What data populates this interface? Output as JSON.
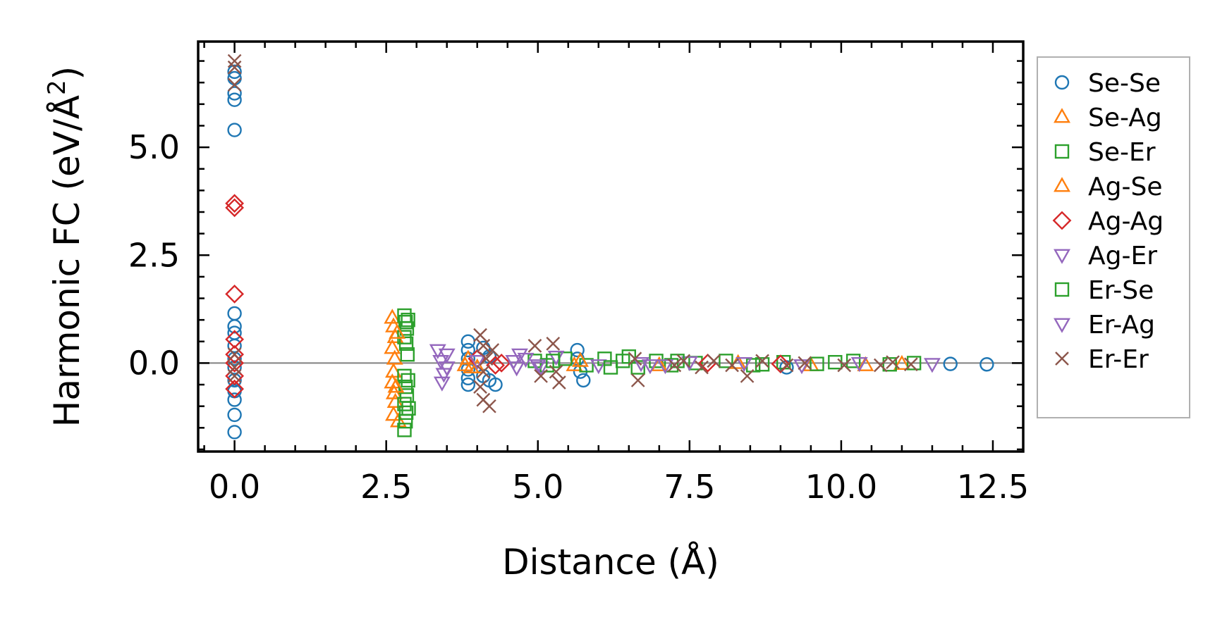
{
  "chart_data": {
    "type": "scatter",
    "xlabel": "Distance (Å)",
    "ylabel_main": "Harmonic FC (eV/Å",
    "ylabel_sup": "2",
    "ylabel_close": ")",
    "xlim": [
      -0.6,
      13.0
    ],
    "ylim": [
      -2.05,
      7.45
    ],
    "x_ticks": [
      0.0,
      2.5,
      5.0,
      7.5,
      10.0,
      12.5
    ],
    "x_tick_labels": [
      "0.0",
      "2.5",
      "5.0",
      "7.5",
      "10.0",
      "12.5"
    ],
    "y_ticks": [
      0.0,
      2.5,
      5.0
    ],
    "y_tick_labels": [
      "0.0",
      "2.5",
      "5.0"
    ],
    "zero_line": 0.0,
    "legend_position": "outside-right",
    "series": [
      {
        "name": "Se-Se",
        "marker": "circle",
        "color": "#1f77b4",
        "points": [
          [
            0,
            6.75
          ],
          [
            0,
            6.6
          ],
          [
            0,
            6.25
          ],
          [
            0,
            6.1
          ],
          [
            0,
            5.4
          ],
          [
            0,
            1.15
          ],
          [
            0,
            0.85
          ],
          [
            0,
            0.7
          ],
          [
            0,
            0.4
          ],
          [
            0,
            0.1
          ],
          [
            0,
            -0.1
          ],
          [
            0,
            -0.4
          ],
          [
            0,
            -0.65
          ],
          [
            0,
            -0.85
          ],
          [
            0,
            -1.2
          ],
          [
            0,
            -1.6
          ],
          [
            3.85,
            0.5
          ],
          [
            3.85,
            0.3
          ],
          [
            3.85,
            0.1
          ],
          [
            3.85,
            -0.15
          ],
          [
            3.85,
            -0.35
          ],
          [
            3.85,
            -0.5
          ],
          [
            4.1,
            0.35
          ],
          [
            4.1,
            -0.3
          ],
          [
            4.2,
            0.15
          ],
          [
            4.2,
            -0.4
          ],
          [
            4.3,
            -0.5
          ],
          [
            5.65,
            0.3
          ],
          [
            5.65,
            0.1
          ],
          [
            5.7,
            -0.2
          ],
          [
            5.75,
            -0.4
          ],
          [
            9.1,
            -0.1
          ],
          [
            11.8,
            -0.02
          ],
          [
            12.4,
            -0.03
          ]
        ]
      },
      {
        "name": "Se-Ag",
        "marker": "triangle-up",
        "color": "#ff7f0e",
        "points": [
          [
            2.6,
            1.05
          ],
          [
            2.62,
            0.85
          ],
          [
            2.65,
            0.6
          ],
          [
            2.6,
            0.35
          ],
          [
            2.64,
            0.1
          ],
          [
            2.62,
            -0.2
          ],
          [
            2.6,
            -0.45
          ],
          [
            2.63,
            -0.7
          ],
          [
            2.65,
            -0.9
          ],
          [
            2.62,
            -1.2
          ],
          [
            2.7,
            -1.35
          ],
          [
            3.8,
            -0.05
          ],
          [
            3.9,
            -0.1
          ],
          [
            5.6,
            -0.05
          ],
          [
            9.5,
            -0.05
          ],
          [
            11.0,
            -0.02
          ]
        ]
      },
      {
        "name": "Se-Er",
        "marker": "square",
        "color": "#2ca02c",
        "points": [
          [
            2.8,
            1.1
          ],
          [
            2.82,
            0.95
          ],
          [
            2.84,
            0.8
          ],
          [
            2.8,
            0.6
          ],
          [
            2.83,
            0.45
          ],
          [
            2.8,
            -0.3
          ],
          [
            2.82,
            -0.55
          ],
          [
            2.84,
            -0.75
          ],
          [
            2.8,
            -0.95
          ],
          [
            2.83,
            -1.15
          ],
          [
            2.82,
            -1.35
          ],
          [
            2.8,
            -1.55
          ],
          [
            4.95,
            0.05
          ],
          [
            5.15,
            -0.05
          ],
          [
            5.45,
            0.1
          ],
          [
            5.8,
            -0.05
          ],
          [
            6.1,
            0.1
          ],
          [
            6.4,
            0.05
          ],
          [
            6.65,
            -0.1
          ],
          [
            6.95,
            0.05
          ],
          [
            7.2,
            -0.05
          ],
          [
            7.6,
            0.0
          ],
          [
            8.1,
            0.05
          ],
          [
            8.55,
            -0.05
          ],
          [
            9.05,
            0.02
          ],
          [
            9.6,
            -0.02
          ],
          [
            10.2,
            0.05
          ],
          [
            10.8,
            -0.03
          ],
          [
            11.2,
            0.0
          ]
        ]
      },
      {
        "name": "Ag-Se",
        "marker": "triangle-up",
        "color": "#ff7f0e",
        "points": [
          [
            2.68,
            0.7
          ],
          [
            2.66,
            -0.55
          ],
          [
            3.85,
            0.1
          ],
          [
            4.0,
            -0.1
          ],
          [
            5.7,
            0.05
          ],
          [
            7.0,
            -0.05
          ],
          [
            8.3,
            0.0
          ],
          [
            10.4,
            -0.05
          ]
        ]
      },
      {
        "name": "Ag-Ag",
        "marker": "diamond",
        "color": "#d62728",
        "points": [
          [
            0,
            3.7
          ],
          [
            0,
            3.6
          ],
          [
            0,
            1.6
          ],
          [
            0,
            0.55
          ],
          [
            0,
            0.2
          ],
          [
            0,
            0.0
          ],
          [
            0,
            -0.3
          ],
          [
            0,
            -0.6
          ],
          [
            4.0,
            0.1
          ],
          [
            4.3,
            -0.05
          ],
          [
            4.4,
            0.0
          ],
          [
            7.8,
            0.0
          ],
          [
            9.0,
            -0.02
          ]
        ]
      },
      {
        "name": "Ag-Er",
        "marker": "triangle-down",
        "color": "#9467bd",
        "points": [
          [
            3.35,
            0.3
          ],
          [
            3.4,
            0.05
          ],
          [
            3.45,
            -0.25
          ],
          [
            3.42,
            -0.45
          ],
          [
            4.0,
            0.05
          ],
          [
            4.7,
            0.2
          ],
          [
            4.65,
            -0.1
          ],
          [
            4.8,
            0.1
          ],
          [
            5.05,
            -0.1
          ],
          [
            5.3,
            0.15
          ],
          [
            6.0,
            -0.05
          ],
          [
            6.85,
            -0.05
          ],
          [
            7.5,
            0.02
          ],
          [
            8.4,
            0.0
          ],
          [
            9.35,
            -0.05
          ],
          [
            11.5,
            -0.02
          ]
        ]
      },
      {
        "name": "Er-Se",
        "marker": "square",
        "color": "#2ca02c",
        "points": [
          [
            2.86,
            1.0
          ],
          [
            2.85,
            0.2
          ],
          [
            2.86,
            -0.4
          ],
          [
            2.87,
            -1.05
          ],
          [
            5.25,
            0.05
          ],
          [
            6.2,
            -0.1
          ],
          [
            6.5,
            0.15
          ],
          [
            7.3,
            0.05
          ],
          [
            8.7,
            -0.03
          ],
          [
            9.9,
            0.02
          ]
        ]
      },
      {
        "name": "Er-Ag",
        "marker": "triangle-down",
        "color": "#9467bd",
        "points": [
          [
            3.5,
            0.2
          ],
          [
            3.5,
            -0.1
          ],
          [
            4.6,
            0.05
          ],
          [
            5.0,
            -0.05
          ],
          [
            6.7,
            0.0
          ],
          [
            7.1,
            -0.05
          ],
          [
            10.3,
            0.0
          ]
        ]
      },
      {
        "name": "Er-Er",
        "marker": "cross",
        "color": "#8c564b",
        "points": [
          [
            0,
            7.0
          ],
          [
            0,
            6.85
          ],
          [
            0,
            6.45
          ],
          [
            0,
            0.2
          ],
          [
            0,
            -0.1
          ],
          [
            0,
            -0.3
          ],
          [
            4.05,
            0.65
          ],
          [
            4.1,
            0.4
          ],
          [
            4.15,
            0.1
          ],
          [
            4.1,
            -0.2
          ],
          [
            4.05,
            -0.55
          ],
          [
            4.1,
            -0.85
          ],
          [
            4.2,
            -1.0
          ],
          [
            4.25,
            0.3
          ],
          [
            4.95,
            0.4
          ],
          [
            5.05,
            -0.3
          ],
          [
            5.25,
            0.45
          ],
          [
            5.3,
            -0.2
          ],
          [
            5.35,
            -0.45
          ],
          [
            6.6,
            0.1
          ],
          [
            6.65,
            -0.4
          ],
          [
            7.25,
            -0.05
          ],
          [
            7.4,
            0.05
          ],
          [
            7.7,
            -0.1
          ],
          [
            7.9,
            0.05
          ],
          [
            8.2,
            -0.05
          ],
          [
            8.45,
            -0.3
          ],
          [
            8.7,
            0.05
          ],
          [
            9.1,
            -0.05
          ],
          [
            9.4,
            0.0
          ],
          [
            10.05,
            -0.05
          ],
          [
            10.65,
            -0.05
          ],
          [
            10.85,
            0.02
          ],
          [
            11.15,
            -0.03
          ]
        ]
      }
    ]
  }
}
